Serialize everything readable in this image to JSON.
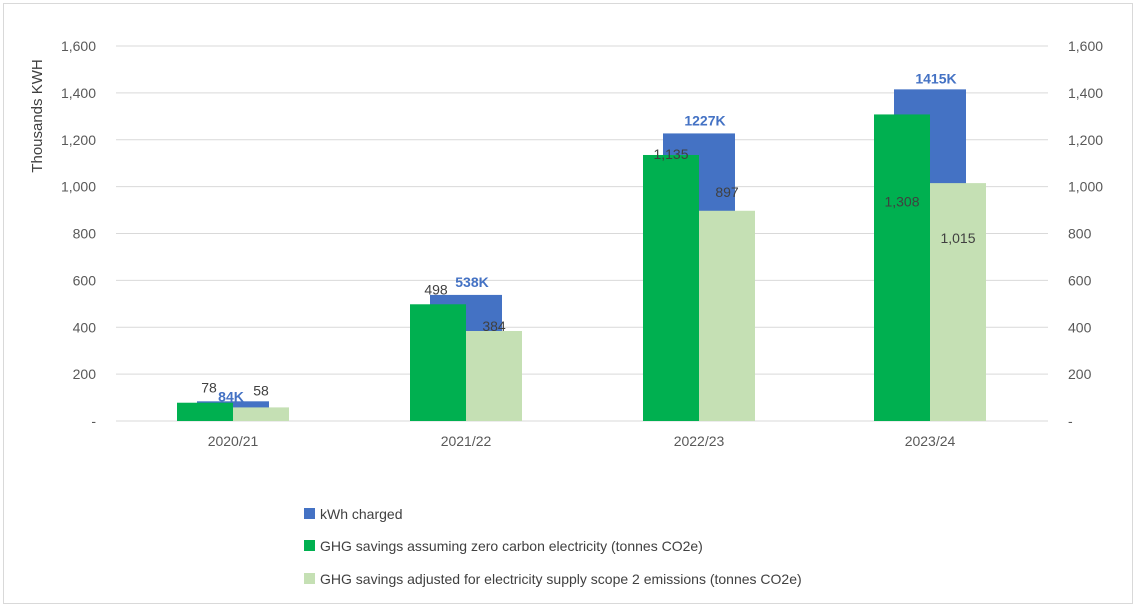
{
  "chart_data": {
    "type": "bar",
    "categories": [
      "2020/21",
      "2021/22",
      "2022/23",
      "2023/24"
    ],
    "ylabel": "Thousands KWH",
    "ylim": [
      0,
      1600
    ],
    "yticks": [
      0,
      200,
      400,
      600,
      800,
      1000,
      1200,
      1400,
      1600
    ],
    "ytick_labels": [
      "-",
      "200",
      "400",
      "600",
      "800",
      "1,000",
      "1,200",
      "1,400",
      "1,600"
    ],
    "secondary_yticks": [
      "-",
      "200",
      "400",
      "600",
      "800",
      "1,000",
      "1,200",
      "1,400",
      "1,600"
    ],
    "grid": true,
    "legend_position": "bottom",
    "series": [
      {
        "name": "kWh charged",
        "color": "#4472c4",
        "values": [
          84,
          538,
          1227,
          1415
        ],
        "labels": [
          "84K",
          "538K",
          "1227K",
          "1415K"
        ]
      },
      {
        "name": "GHG savings assuming zero carbon electricity (tonnes CO2e)",
        "color": "#00b050",
        "values": [
          78,
          498,
          1135,
          1308
        ],
        "labels": [
          "78",
          "498",
          "1,135",
          "1,308"
        ]
      },
      {
        "name": "GHG savings adjusted for electricity supply scope 2 emissions (tonnes CO2e)",
        "color": "#c5e0b4",
        "values": [
          58,
          384,
          897,
          1015
        ],
        "labels": [
          "58",
          "384",
          "897",
          "1,015"
        ]
      }
    ]
  }
}
